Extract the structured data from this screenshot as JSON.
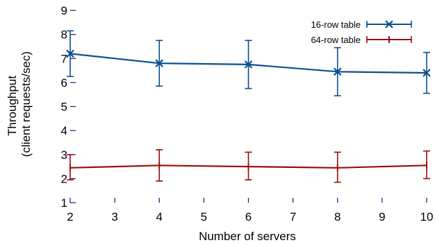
{
  "chart_data": {
    "type": "line",
    "title": "",
    "xlabel": "Number of servers",
    "ylabel_lines": [
      "Throughput",
      "(client requests/sec)"
    ],
    "xlim": [
      2,
      10
    ],
    "ylim": [
      1,
      9
    ],
    "xticks": [
      2,
      3,
      4,
      5,
      6,
      7,
      8,
      9,
      10
    ],
    "yticks": [
      1,
      2,
      3,
      4,
      5,
      6,
      7,
      8,
      9
    ],
    "grid": false,
    "legend_position": "top-right",
    "x": [
      2,
      4,
      6,
      8,
      10
    ],
    "series": [
      {
        "name": "16-row table",
        "color": "#0b4f8f",
        "marker": "x",
        "values": [
          7.2,
          6.8,
          6.75,
          6.45,
          6.4
        ],
        "err_low": [
          6.25,
          5.85,
          5.75,
          5.45,
          5.55
        ],
        "err_high": [
          8.15,
          7.75,
          7.75,
          7.45,
          7.25
        ]
      },
      {
        "name": "64-row table",
        "color": "#9b0a0a",
        "marker": "tick",
        "values": [
          2.45,
          2.55,
          2.5,
          2.45,
          2.55
        ],
        "err_low": [
          1.95,
          1.9,
          1.95,
          1.85,
          2.0
        ],
        "err_high": [
          3.0,
          3.2,
          3.1,
          3.1,
          3.15
        ]
      }
    ]
  }
}
